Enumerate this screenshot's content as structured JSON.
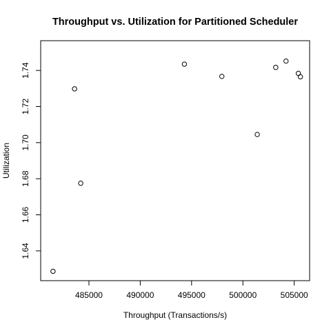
{
  "chart_data": {
    "type": "scatter",
    "title": "Throughput vs. Utilization for Partitioned Scheduler",
    "xlabel": "Throughput (Transactions/s)",
    "ylabel": "Utilization",
    "xlim": [
      480300,
      506500
    ],
    "ylim": [
      1.6235,
      1.7565
    ],
    "x_ticks": [
      485000,
      490000,
      495000,
      500000,
      505000
    ],
    "x_tick_labels": [
      "485000",
      "490000",
      "495000",
      "500000",
      "505000"
    ],
    "y_ticks": [
      1.64,
      1.66,
      1.68,
      1.7,
      1.72,
      1.74
    ],
    "y_tick_labels": [
      "1.64",
      "1.66",
      "1.68",
      "1.70",
      "1.72",
      "1.74"
    ],
    "grid": false,
    "legend": "none",
    "marker": "open-circle",
    "points": [
      {
        "x": 481500,
        "y": 1.6287
      },
      {
        "x": 483600,
        "y": 1.7298
      },
      {
        "x": 484200,
        "y": 1.6775
      },
      {
        "x": 494300,
        "y": 1.7435
      },
      {
        "x": 497950,
        "y": 1.7367
      },
      {
        "x": 501400,
        "y": 1.7045
      },
      {
        "x": 503200,
        "y": 1.7417
      },
      {
        "x": 504200,
        "y": 1.7452
      },
      {
        "x": 505400,
        "y": 1.7384
      },
      {
        "x": 505600,
        "y": 1.7365
      }
    ]
  }
}
